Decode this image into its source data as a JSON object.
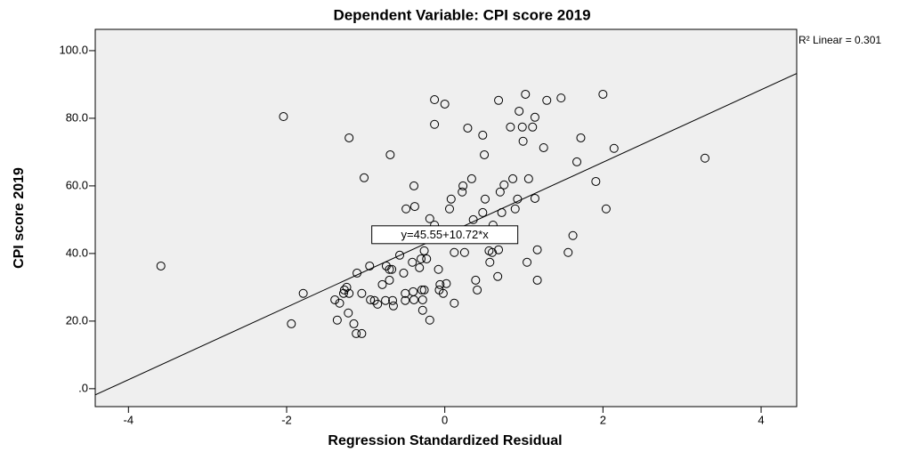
{
  "chart_data": {
    "type": "scatter",
    "title": "Dependent Variable: CPI score 2019",
    "x_label": "Regression Standardized Residual",
    "y_label": "CPI score 2019",
    "r2_label": "R² Linear = 0.301",
    "fit": {
      "intercept": 45.55,
      "slope": 10.72,
      "label": "y=45.55+10.72*x"
    },
    "color": "#000000",
    "xlim": [
      -4.42,
      4.45
    ],
    "ylim": [
      -5.3,
      106.3
    ],
    "xticks": [
      -4,
      -2,
      0,
      2,
      4
    ],
    "yticks": [
      {
        "value": 0,
        "label": ".0"
      },
      {
        "value": 20,
        "label": "20.0"
      },
      {
        "value": 40,
        "label": "40.0"
      },
      {
        "value": 60,
        "label": "60.0"
      },
      {
        "value": 80,
        "label": "80.0"
      },
      {
        "value": 100,
        "label": "100.0"
      }
    ],
    "x": [
      -3.59,
      -2.04,
      -1.94,
      -1.79,
      -1.21,
      -1.02,
      -0.69,
      -0.39,
      -0.38,
      -0.13,
      0,
      -0.13,
      0.29,
      0.48,
      0.68,
      1.02,
      1.47,
      2.0,
      1.29,
      0.94,
      1.14,
      0.83,
      0.98,
      1.11,
      0.99,
      1.25,
      1.72,
      1.67,
      2.14,
      3.29,
      1.91,
      2.04,
      0.5,
      0.34,
      0.23,
      0.22,
      0.08,
      0.51,
      0.86,
      0.75,
      1.06,
      0.7,
      0.92,
      1.14,
      0.48,
      0.72,
      0.89,
      0.06,
      -0.19,
      -0.49,
      -0.13,
      0.36,
      0.61,
      1.62,
      -0.26,
      0.12,
      0.25,
      0.56,
      0.6,
      0.68,
      1.17,
      1.56,
      0.57,
      1.04,
      0.67,
      0.39,
      1.17,
      0.41,
      -0.57,
      -0.41,
      -0.3,
      -0.23,
      -0.08,
      -0.32,
      -0.74,
      -0.67,
      -0.7,
      -0.95,
      -1.11,
      -0.52,
      -0.7,
      -0.79,
      -1.24,
      -1.27,
      -1.28,
      -1.21,
      -1.05,
      -0.5,
      -0.4,
      -0.29,
      -0.26,
      -0.07,
      -0.02,
      0.02,
      -0.06,
      0.12,
      -0.28,
      -0.39,
      -0.5,
      -0.66,
      -0.75,
      -0.89,
      -0.94,
      -0.85,
      -0.65,
      -1.39,
      -1.33,
      -1.22,
      -0.28,
      -0.19,
      -1.36,
      -1.15,
      -1.12,
      -1.05
    ],
    "values": [
      36.3,
      80.5,
      19.2,
      28.2,
      74.2,
      62.4,
      69.2,
      60,
      53.9,
      85.5,
      84.2,
      78.2,
      77.1,
      75,
      85.3,
      87.1,
      86,
      87.1,
      85.3,
      82.1,
      80.3,
      77.4,
      77.4,
      77.4,
      73.2,
      71.3,
      74.2,
      67.1,
      71.1,
      68.2,
      61.3,
      53.2,
      69.2,
      62.1,
      60,
      58.2,
      56.1,
      56.1,
      62.1,
      60.3,
      62.1,
      58.2,
      56.1,
      56.3,
      52.1,
      52.1,
      53.2,
      53.2,
      50.3,
      53.2,
      48.4,
      50,
      48.4,
      45.3,
      40.8,
      40.3,
      40.3,
      40.8,
      40.3,
      41.1,
      41.1,
      40.3,
      37.4,
      37.4,
      33.2,
      32.1,
      32.1,
      29.2,
      39.5,
      37.4,
      38.4,
      38.4,
      35.3,
      35.8,
      36.3,
      35.3,
      35.3,
      36.3,
      34.2,
      34.2,
      32.1,
      30.8,
      30,
      29.2,
      28.2,
      28.2,
      28.2,
      28.2,
      28.7,
      29.2,
      29.2,
      29.2,
      28.2,
      31.1,
      30.8,
      25.3,
      26.3,
      26.3,
      26.1,
      26.1,
      26.1,
      26.1,
      26.3,
      25,
      24.5,
      26.3,
      25.3,
      22.4,
      23.2,
      20.3,
      20.3,
      19.2,
      16.3,
      16.3
    ]
  }
}
